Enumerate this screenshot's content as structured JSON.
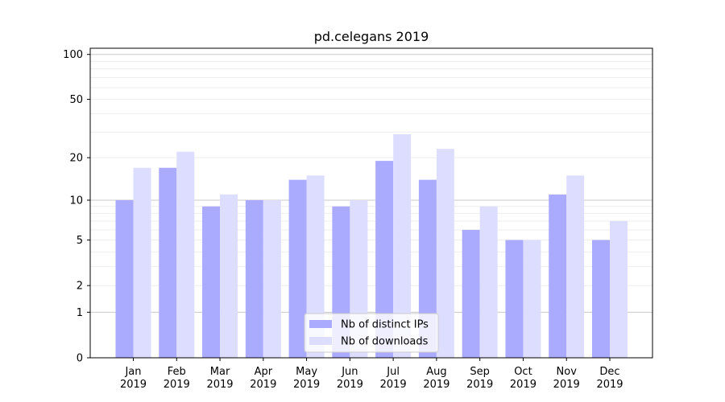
{
  "chart_data": {
    "type": "bar",
    "title": "pd.celegans 2019",
    "xlabel": "",
    "ylabel": "",
    "yscale": "symlog",
    "ylim": [
      0,
      110
    ],
    "yticks": [
      0,
      1,
      2,
      5,
      10,
      20,
      50,
      100
    ],
    "grid": true,
    "legend_position": "lower-center",
    "categories": [
      [
        "Jan",
        "2019"
      ],
      [
        "Feb",
        "2019"
      ],
      [
        "Mar",
        "2019"
      ],
      [
        "Apr",
        "2019"
      ],
      [
        "May",
        "2019"
      ],
      [
        "Jun",
        "2019"
      ],
      [
        "Jul",
        "2019"
      ],
      [
        "Aug",
        "2019"
      ],
      [
        "Sep",
        "2019"
      ],
      [
        "Oct",
        "2019"
      ],
      [
        "Nov",
        "2019"
      ],
      [
        "Dec",
        "2019"
      ]
    ],
    "series": [
      {
        "name": "Nb of distinct IPs",
        "color": "#aaaaff",
        "values": [
          10,
          17,
          9,
          10,
          14,
          9,
          19,
          14,
          6,
          5,
          11,
          5
        ]
      },
      {
        "name": "Nb of downloads",
        "color": "#ddddff",
        "values": [
          17,
          22,
          11,
          10,
          15,
          10,
          29,
          23,
          9,
          5,
          15,
          7
        ]
      }
    ]
  }
}
